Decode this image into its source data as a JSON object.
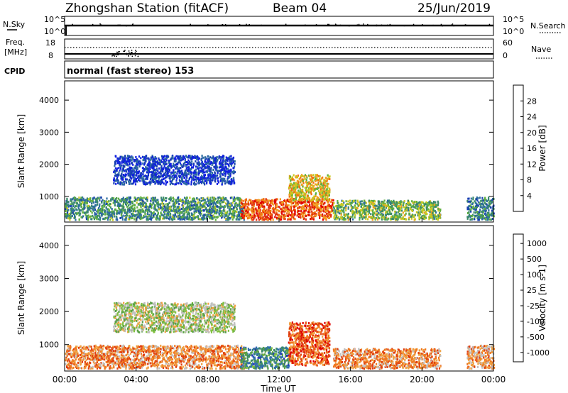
{
  "header": {
    "station": "Zhongshan Station (fitACF)",
    "beam": "Beam 04",
    "date": "25/Jun/2019"
  },
  "nsky_panel": {
    "left_label": "N.Sky",
    "left_ticks": [
      "10^5",
      "10^0"
    ],
    "right_label": "N.Search",
    "right_ticks": [
      "10^5",
      "10^0"
    ]
  },
  "freq_panel": {
    "left_label_line1": "Freq.",
    "left_label_line2": "[MHz]",
    "left_ticks": [
      "18",
      "8"
    ],
    "right_label": "Nave",
    "right_ticks": [
      "60",
      "0"
    ]
  },
  "cpid": {
    "label": "CPID",
    "text": "normal (fast stereo) 153"
  },
  "colors": {
    "power": [
      "#1020e0",
      "#1840b0",
      "#2e6ea0",
      "#3a8a6a",
      "#60b040",
      "#c8c820",
      "#f0a020",
      "#f07010",
      "#e03010",
      "#e00000"
    ],
    "velocity": [
      "#2030c0",
      "#2f6eb0",
      "#3a8a6a",
      "#5aa048",
      "#80c040",
      "#c0c0c0",
      "#f0a040",
      "#f07820",
      "#e04010",
      "#e00000"
    ]
  },
  "chart_data": [
    {
      "type": "heatmap",
      "name": "power",
      "ylabel": "Slant Range [km]",
      "yticks": [
        "1000",
        "2000",
        "3000",
        "4000"
      ],
      "ylim": [
        200,
        4600
      ],
      "xlim_hours": [
        0,
        24
      ],
      "colorbar_label": "Power [dB]",
      "colorbar_ticks": [
        "4",
        "8",
        "12",
        "16",
        "20",
        "24",
        "28"
      ],
      "colorbar_range": [
        0,
        32
      ],
      "regions": [
        {
          "x0": 0.0,
          "x1": 10.0,
          "y0": 300,
          "y1": 1000,
          "level": 0.35
        },
        {
          "x0": 2.7,
          "x1": 9.5,
          "y0": 1400,
          "y1": 2300,
          "level": 0.12
        },
        {
          "x0": 9.8,
          "x1": 15.0,
          "y0": 300,
          "y1": 950,
          "level": 0.8
        },
        {
          "x0": 12.5,
          "x1": 14.8,
          "y0": 900,
          "y1": 1700,
          "level": 0.6
        },
        {
          "x0": 15.0,
          "x1": 21.0,
          "y0": 300,
          "y1": 900,
          "level": 0.45
        },
        {
          "x0": 22.5,
          "x1": 24.0,
          "y0": 300,
          "y1": 1000,
          "level": 0.3
        }
      ]
    },
    {
      "type": "heatmap",
      "name": "velocity",
      "ylabel": "Slant Range [km]",
      "yticks": [
        "1000",
        "2000",
        "3000",
        "4000"
      ],
      "ylim": [
        200,
        4600
      ],
      "xlabel": "Time UT",
      "xticks": [
        "00:00",
        "04:00",
        "08:00",
        "12:00",
        "16:00",
        "20:00",
        "00:00"
      ],
      "xlim_hours": [
        0,
        24
      ],
      "colorbar_label": "Velocity [m s-1]",
      "colorbar_ticks": [
        "1000",
        "500",
        "100",
        "25",
        "-25",
        "-100",
        "-500",
        "-1000"
      ],
      "regions": [
        {
          "x0": 0.0,
          "x1": 10.0,
          "y0": 300,
          "y1": 1000,
          "level": 0.72
        },
        {
          "x0": 2.7,
          "x1": 9.5,
          "y0": 1400,
          "y1": 2300,
          "level": 0.5
        },
        {
          "x0": 9.8,
          "x1": 12.6,
          "y0": 300,
          "y1": 950,
          "level": 0.25
        },
        {
          "x0": 12.5,
          "x1": 14.8,
          "y0": 400,
          "y1": 1700,
          "level": 0.8
        },
        {
          "x0": 15.0,
          "x1": 21.0,
          "y0": 300,
          "y1": 900,
          "level": 0.7
        },
        {
          "x0": 22.5,
          "x1": 24.0,
          "y0": 300,
          "y1": 1000,
          "level": 0.7
        }
      ]
    }
  ]
}
